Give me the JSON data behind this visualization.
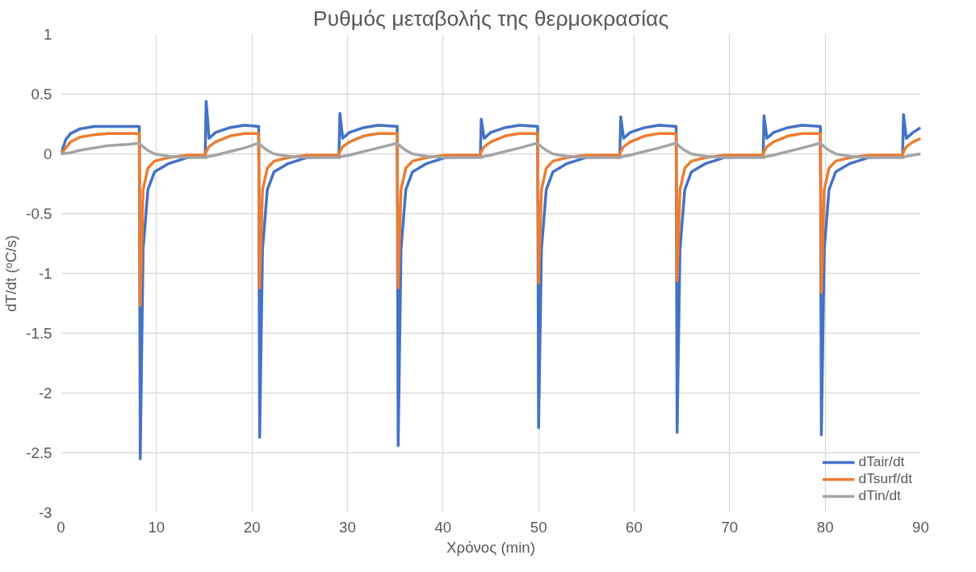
{
  "chart_data": {
    "type": "line",
    "title": "Ρυθμός μεταβολής της θερμοκρασίας",
    "xlabel": "Χρόνος (min)",
    "ylabel": "dT/dt (ᵒC/s)",
    "x": [
      0,
      0.5,
      1,
      2,
      3.5,
      5,
      7,
      8.2,
      8.3,
      8.6,
      9.1,
      9.8,
      11.3,
      13.3,
      15.1,
      15.2,
      15.5,
      16.2,
      17.7,
      19.2,
      20.7,
      20.8,
      21.1,
      21.6,
      22.3,
      23.8,
      25.8,
      29.1,
      29.2,
      29.5,
      30.2,
      31.7,
      33.2,
      35.2,
      35.3,
      35.6,
      36.1,
      36.8,
      38.3,
      40.3,
      43.9,
      44,
      44.3,
      45,
      46.5,
      48,
      49.9,
      50,
      50.3,
      50.8,
      51.5,
      53,
      55,
      58.5,
      58.6,
      58.9,
      59.6,
      61.1,
      62.6,
      64.4,
      64.5,
      64.8,
      65.3,
      66,
      67.5,
      69.5,
      73.5,
      73.6,
      73.9,
      74.6,
      76.1,
      77.6,
      79.5,
      79.6,
      79.9,
      80.4,
      81.1,
      82.6,
      84.6,
      88.1,
      88.2,
      88.5,
      89.2,
      90
    ],
    "series": [
      {
        "name": "dTair/dt",
        "color": "#4472c4",
        "values": [
          0,
          0.12,
          0.17,
          0.21,
          0.23,
          0.23,
          0.23,
          0.23,
          -2.55,
          -0.8,
          -0.3,
          -0.15,
          -0.08,
          -0.03,
          -0.02,
          0.44,
          0.13,
          0.18,
          0.22,
          0.24,
          0.23,
          -2.37,
          -0.8,
          -0.3,
          -0.15,
          -0.08,
          -0.03,
          -0.02,
          0.34,
          0.13,
          0.18,
          0.22,
          0.24,
          0.23,
          -2.44,
          -0.8,
          -0.3,
          -0.15,
          -0.08,
          -0.03,
          -0.02,
          0.29,
          0.13,
          0.18,
          0.22,
          0.24,
          0.23,
          -2.29,
          -0.8,
          -0.3,
          -0.15,
          -0.08,
          -0.03,
          -0.02,
          0.31,
          0.13,
          0.18,
          0.22,
          0.24,
          0.23,
          -2.33,
          -0.8,
          -0.3,
          -0.15,
          -0.08,
          -0.03,
          -0.02,
          0.32,
          0.13,
          0.18,
          0.22,
          0.24,
          0.23,
          -2.35,
          -0.8,
          -0.3,
          -0.15,
          -0.08,
          -0.03,
          -0.02,
          0.33,
          0.13,
          0.18,
          0.22
        ]
      },
      {
        "name": "dTsurf/dt",
        "color": "#ed7d31",
        "values": [
          0,
          0.05,
          0.1,
          0.14,
          0.16,
          0.17,
          0.17,
          0.17,
          -1.27,
          -0.3,
          -0.12,
          -0.06,
          -0.03,
          -0.01,
          -0.01,
          0.02,
          0.06,
          0.1,
          0.15,
          0.17,
          0.17,
          -1.12,
          -0.3,
          -0.12,
          -0.06,
          -0.03,
          -0.01,
          -0.01,
          0.02,
          0.06,
          0.1,
          0.15,
          0.17,
          0.17,
          -1.12,
          -0.3,
          -0.12,
          -0.06,
          -0.03,
          -0.01,
          -0.01,
          0.02,
          0.06,
          0.1,
          0.15,
          0.17,
          0.17,
          -1.08,
          -0.3,
          -0.12,
          -0.06,
          -0.03,
          -0.01,
          -0.01,
          0.02,
          0.06,
          0.1,
          0.15,
          0.17,
          0.17,
          -1.06,
          -0.3,
          -0.12,
          -0.06,
          -0.03,
          -0.01,
          -0.01,
          0.02,
          0.06,
          0.1,
          0.15,
          0.17,
          0.17,
          -1.16,
          -0.3,
          -0.12,
          -0.06,
          -0.03,
          -0.01,
          -0.01,
          0.02,
          0.06,
          0.1,
          0.13
        ]
      },
      {
        "name": "dTin/dt",
        "color": "#a5a5a5",
        "values": [
          0,
          0.005,
          0.01,
          0.03,
          0.05,
          0.07,
          0.08,
          0.09,
          0.08,
          0.06,
          0.03,
          0,
          -0.02,
          -0.03,
          -0.03,
          -0.03,
          -0.02,
          -0.01,
          0.02,
          0.05,
          0.09,
          0.08,
          0.06,
          0.03,
          0,
          -0.02,
          -0.03,
          -0.03,
          -0.03,
          -0.02,
          -0.01,
          0.02,
          0.05,
          0.09,
          0.08,
          0.06,
          0.03,
          0,
          -0.02,
          -0.03,
          -0.03,
          -0.03,
          -0.02,
          -0.01,
          0.02,
          0.05,
          0.09,
          0.08,
          0.06,
          0.03,
          0,
          -0.02,
          -0.03,
          -0.03,
          -0.03,
          -0.02,
          -0.01,
          0.02,
          0.05,
          0.09,
          0.08,
          0.06,
          0.03,
          0,
          -0.02,
          -0.03,
          -0.03,
          -0.03,
          -0.02,
          -0.01,
          0.02,
          0.05,
          0.09,
          0.08,
          0.06,
          0.03,
          0,
          -0.02,
          -0.03,
          -0.03,
          -0.03,
          -0.02,
          -0.01,
          0
        ]
      }
    ],
    "xlim": [
      0,
      90
    ],
    "ylim": [
      -3,
      1
    ],
    "xticks": [
      0,
      10,
      20,
      30,
      40,
      50,
      60,
      70,
      80,
      90
    ],
    "yticks": [
      -3,
      -2.5,
      -2,
      -1.5,
      -1,
      -0.5,
      0,
      0.5,
      1
    ],
    "grid": true,
    "legend": "bottom right",
    "line_style": "solid",
    "marker": "none"
  }
}
